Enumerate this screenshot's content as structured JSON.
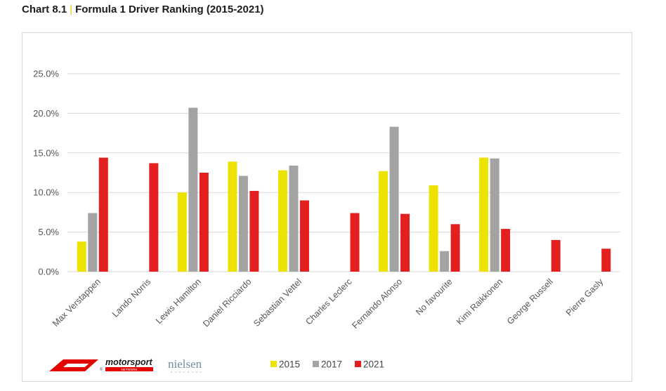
{
  "header": {
    "chart_number": "Chart 8.1",
    "separator": "|",
    "title": "Formula 1 Driver Ranking (2015-2021)"
  },
  "logos": {
    "f1": "F1",
    "motorsport_main": "motorsport",
    "motorsport_sub": "NETWORK",
    "nielsen": "nielsen"
  },
  "colors": {
    "2015": "#ede300",
    "2017": "#a3a3a3",
    "2021": "#e3201f",
    "grid": "#d9d9d9",
    "f1_red": "#e10600"
  },
  "chart_data": {
    "type": "bar",
    "title": "Formula 1 Driver Ranking (2015-2021)",
    "xlabel": "",
    "ylabel": "",
    "ylim": [
      0,
      25
    ],
    "yticks": [
      "0.0%",
      "5.0%",
      "10.0%",
      "15.0%",
      "20.0%",
      "25.0%"
    ],
    "grid": true,
    "legend_position": "bottom",
    "categories": [
      "Max Verstappen",
      "Lando Norris",
      "Lewis Hamilton",
      "Daniel Ricciardo",
      "Sebastian Vettel",
      "Charles Leclerc",
      "Fernando Alonso",
      "No favourite",
      "Kimi Raikkonen",
      "George Russell",
      "Pierre Gasly"
    ],
    "series": [
      {
        "name": "2015",
        "values": [
          3.8,
          null,
          10.0,
          13.9,
          12.8,
          null,
          12.7,
          10.9,
          14.4,
          null,
          null
        ]
      },
      {
        "name": "2017",
        "values": [
          7.4,
          null,
          20.7,
          12.1,
          13.4,
          null,
          18.3,
          2.6,
          14.3,
          null,
          null
        ]
      },
      {
        "name": "2021",
        "values": [
          14.4,
          13.7,
          12.5,
          10.2,
          9.0,
          7.4,
          7.3,
          6.0,
          5.4,
          4.0,
          2.9
        ]
      }
    ]
  }
}
